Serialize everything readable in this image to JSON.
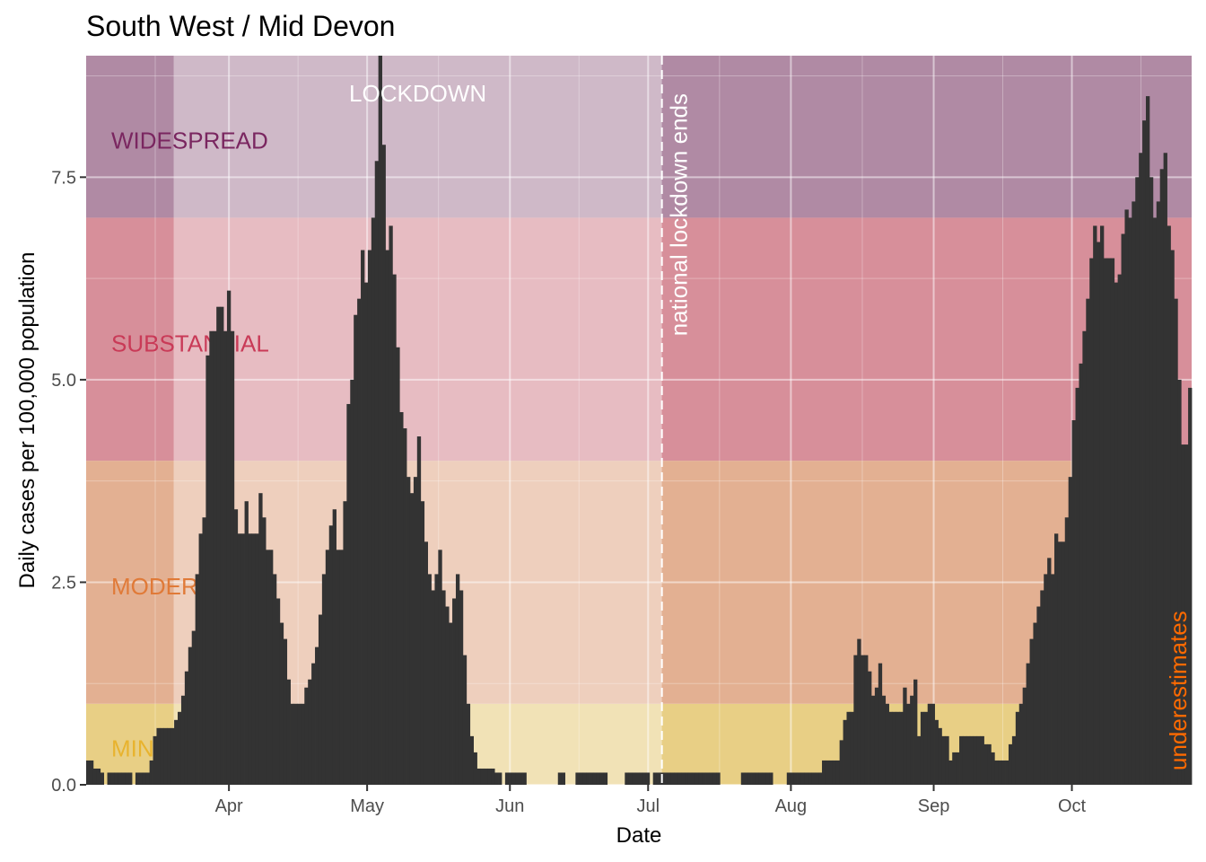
{
  "chart_data": {
    "type": "bar",
    "title": "South West / Mid Devon",
    "xlabel": "Date",
    "ylabel": "Daily cases per 100,000 population",
    "x_start": "2020-03-01",
    "x_end": "2020-10-27",
    "ylim": [
      0,
      9.0
    ],
    "y_ticks": [
      0.0,
      2.5,
      5.0,
      7.5
    ],
    "y_tick_labels": [
      "0.0",
      "2.5",
      "5.0",
      "7.5"
    ],
    "x_ticks": [
      {
        "date": "2020-04-01",
        "label": "Apr"
      },
      {
        "date": "2020-05-01",
        "label": "May"
      },
      {
        "date": "2020-06-01",
        "label": "Jun"
      },
      {
        "date": "2020-07-01",
        "label": "Jul"
      },
      {
        "date": "2020-08-01",
        "label": "Aug"
      },
      {
        "date": "2020-09-01",
        "label": "Sep"
      },
      {
        "date": "2020-10-01",
        "label": "Oct"
      }
    ],
    "bands": [
      {
        "label": "MINIMAL",
        "visible_text": "MINI",
        "from": 0,
        "to": 1,
        "color": "#e8cf85",
        "text_color": "#e8b32e"
      },
      {
        "label": "MODERATE",
        "visible_text": "MODERA",
        "from": 1,
        "to": 4,
        "color": "#e3b092",
        "text_color": "#e07a38"
      },
      {
        "label": "SUBSTANTIAL",
        "visible_text": "SUBSTANTIAL",
        "from": 4,
        "to": 7,
        "color": "#d78f9a",
        "text_color": "#c93a57"
      },
      {
        "label": "WIDESPREAD",
        "visible_text": "WIDESPREAD",
        "from": 7,
        "to": 9.0,
        "color": "#b08aa4",
        "text_color": "#7a2660"
      }
    ],
    "lockdown": {
      "label": "LOCKDOWN",
      "start": "2020-03-20",
      "end": "2020-07-04",
      "overlay_color": "#ffffff",
      "overlay_opacity": 0.4
    },
    "lockdown_end_label": "national lockdown ends",
    "underestimate_label": "underestimates",
    "underestimate_color": "#ff6a00",
    "bar_color": "#333333",
    "values": [
      0.3,
      0.3,
      0.2,
      0.2,
      0.15,
      0,
      0.15,
      0.15,
      0.15,
      0.15,
      0.15,
      0.15,
      0.15,
      0,
      0.15,
      0.15,
      0.15,
      0.15,
      0.3,
      0.6,
      0.7,
      0.7,
      0.7,
      0.7,
      0.7,
      0.8,
      0.9,
      1.1,
      1.4,
      1.7,
      1.9,
      2.6,
      3.1,
      3.3,
      5.3,
      5.6,
      5.6,
      5.9,
      5.9,
      5.6,
      6.1,
      5.6,
      3.4,
      3.1,
      3.1,
      3.5,
      3.1,
      3.1,
      3.1,
      3.6,
      3.3,
      2.9,
      2.9,
      2.6,
      2.3,
      2.0,
      1.8,
      1.3,
      1.0,
      1.0,
      1.0,
      1.0,
      1.2,
      1.3,
      1.5,
      1.7,
      2.1,
      2.6,
      2.9,
      3.2,
      3.4,
      2.9,
      2.9,
      3.5,
      4.7,
      5.0,
      5.8,
      6.0,
      6.6,
      6.2,
      6.6,
      7.0,
      7.7,
      9.0,
      7.9,
      6.6,
      6.9,
      6.3,
      5.4,
      4.6,
      4.4,
      3.8,
      3.6,
      3.8,
      4.3,
      3.5,
      3.0,
      2.6,
      2.4,
      2.6,
      2.9,
      2.4,
      2.2,
      2.0,
      2.3,
      2.6,
      2.4,
      1.6,
      1.0,
      0.6,
      0.4,
      0.2,
      0.2,
      0.2,
      0.2,
      0.2,
      0.15,
      0.15,
      0,
      0.15,
      0.15,
      0.15,
      0.15,
      0.15,
      0.15,
      0,
      0,
      0,
      0,
      0,
      0,
      0,
      0,
      0,
      0.15,
      0.15,
      0,
      0,
      0,
      0.15,
      0.15,
      0.15,
      0.15,
      0.15,
      0.15,
      0.15,
      0.15,
      0.15,
      0,
      0,
      0,
      0,
      0,
      0.15,
      0.15,
      0.15,
      0.15,
      0.15,
      0.15,
      0.15,
      0,
      0.15,
      0.15,
      0.15,
      0.15,
      0.15,
      0.15,
      0.15,
      0.15,
      0.15,
      0.15,
      0.15,
      0.15,
      0.15,
      0.15,
      0.15,
      0.15,
      0.15,
      0.15,
      0.15,
      0,
      0,
      0,
      0,
      0,
      0,
      0.15,
      0.15,
      0.15,
      0.15,
      0.15,
      0.15,
      0.15,
      0.15,
      0.15,
      0,
      0,
      0,
      0,
      0.15,
      0.15,
      0.15,
      0.15,
      0.15,
      0.15,
      0.15,
      0.15,
      0.15,
      0.15,
      0.3,
      0.3,
      0.3,
      0.3,
      0.3,
      0.55,
      0.8,
      0.9,
      0.9,
      1.6,
      1.8,
      1.6,
      1.6,
      1.4,
      1.1,
      1.2,
      1.5,
      1.1,
      1.0,
      0.9,
      0.9,
      0.9,
      0.9,
      1.2,
      1.0,
      1.1,
      1.3,
      0.6,
      0.9,
      0.9,
      1.0,
      1.0,
      0.8,
      0.7,
      0.6,
      0.6,
      0.3,
      0.4,
      0.4,
      0.6,
      0.6,
      0.6,
      0.6,
      0.6,
      0.6,
      0.6,
      0.5,
      0.5,
      0.4,
      0.3,
      0.3,
      0.3,
      0.3,
      0.5,
      0.6,
      0.9,
      1.0,
      1.2,
      1.5,
      1.8,
      2.0,
      2.2,
      2.4,
      2.6,
      2.8,
      2.6,
      3.1,
      3.0,
      3.0,
      3.3,
      3.8,
      4.5,
      4.9,
      5.2,
      5.6,
      6.0,
      6.5,
      6.9,
      6.7,
      6.9,
      6.5,
      6.5,
      6.5,
      6.2,
      6.3,
      6.8,
      7.1,
      7.0,
      7.2,
      7.5,
      7.8,
      8.2,
      8.5,
      7.5,
      7.0,
      7.2,
      7.6,
      7.8,
      6.9,
      6.6,
      6.0,
      5.0,
      4.2,
      4.2,
      4.9
    ]
  }
}
